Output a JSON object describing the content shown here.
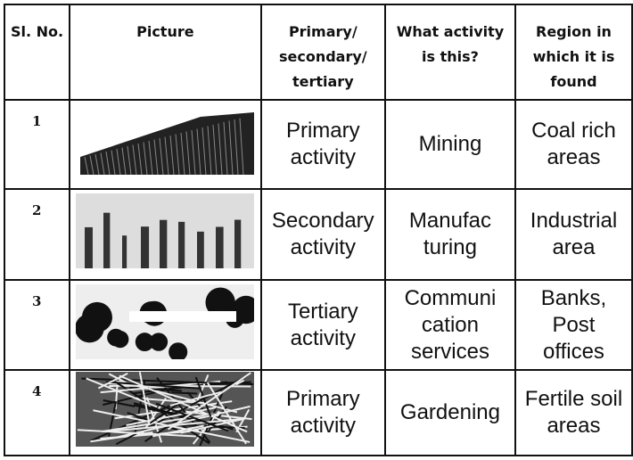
{
  "table": {
    "header": [
      "Sl. No.",
      "Picture",
      [
        "Primary/",
        "secondary/",
        "tertiary"
      ],
      [
        "What activity",
        "is this?"
      ],
      [
        "Region in",
        "which it is",
        "found"
      ]
    ],
    "rows": [
      {
        "no": "1",
        "level": [
          "Primary",
          "activity"
        ],
        "activity": [
          "Mining"
        ],
        "region": [
          "Coal rich",
          "areas"
        ]
      },
      {
        "no": "2",
        "level": [
          "Secondary",
          "activity"
        ],
        "activity": [
          "Manufac",
          "turing"
        ],
        "region": [
          "Industrial",
          "area"
        ]
      },
      {
        "no": "3",
        "level": [
          "Tertiary",
          "activity"
        ],
        "activity": [
          "Communi",
          "cation",
          "services"
        ],
        "region": [
          "Banks,",
          "Post",
          "offices"
        ]
      },
      {
        "no": "4",
        "level": [
          "Primary",
          "activity"
        ],
        "activity": [
          "Gardening"
        ],
        "region": [
          "Fertile soil",
          "areas"
        ]
      }
    ]
  }
}
